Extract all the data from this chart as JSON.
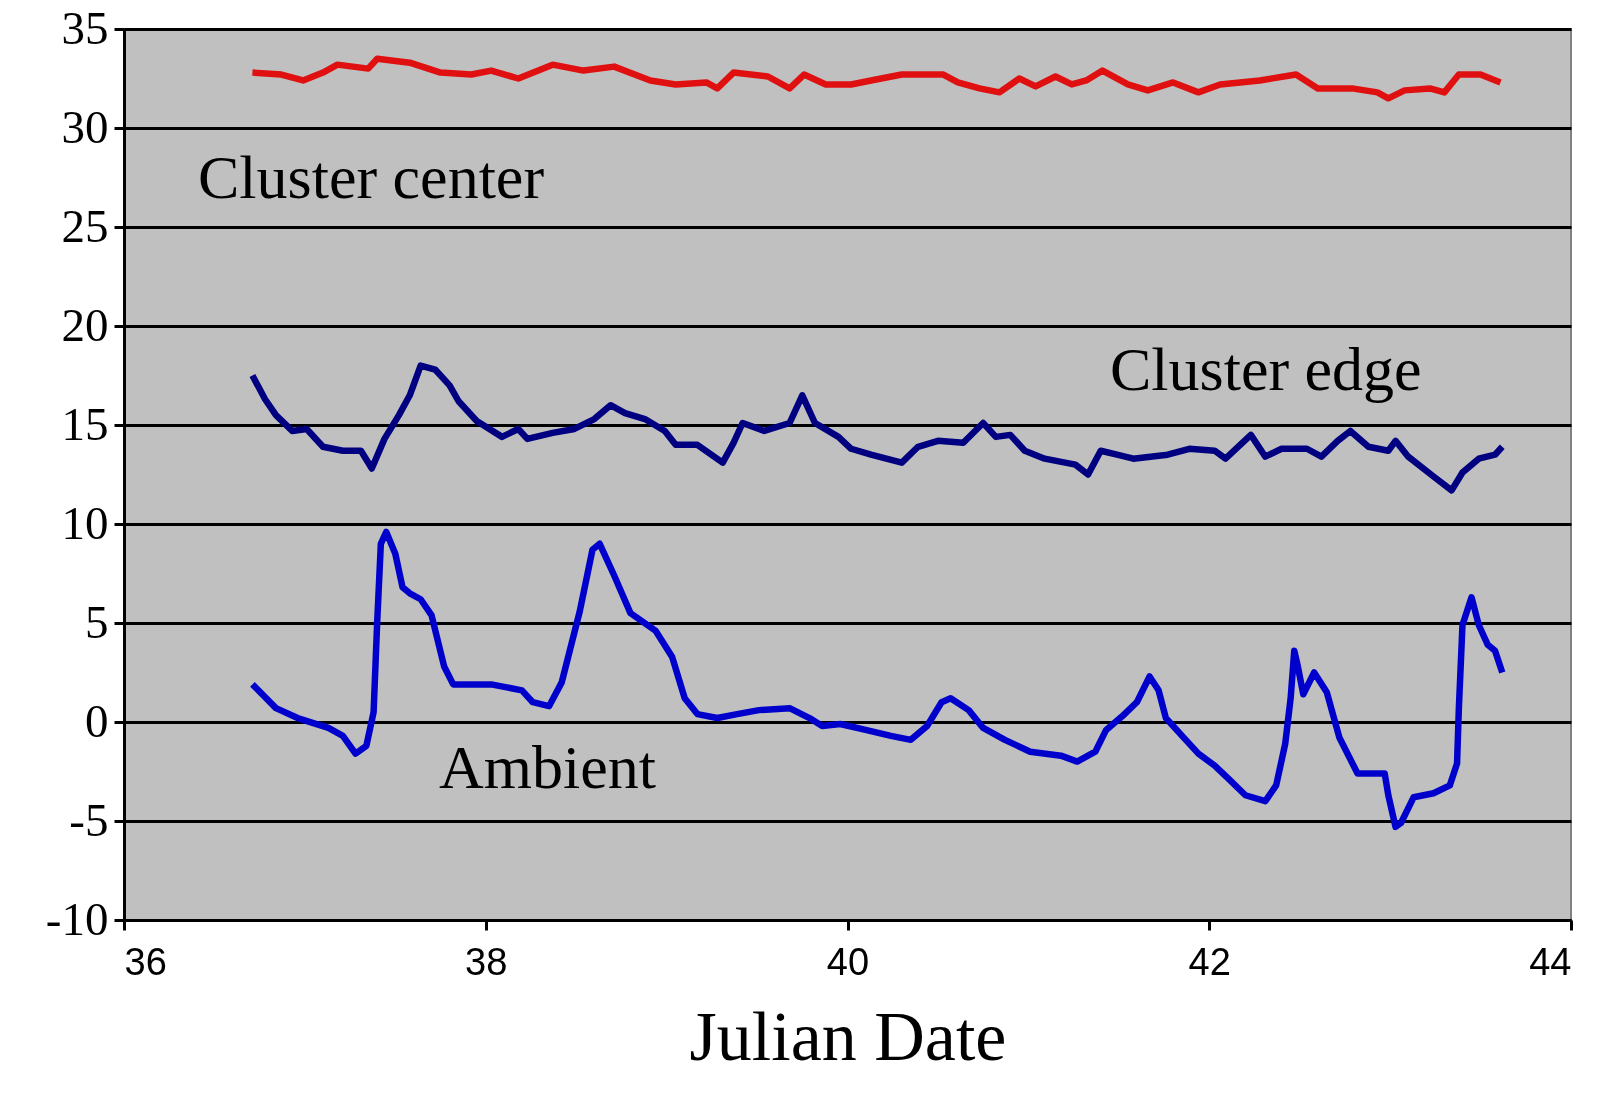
{
  "chart_data": {
    "type": "line",
    "xlabel": "Julian Date",
    "xlim": [
      36,
      44
    ],
    "xticks": [
      36,
      38,
      40,
      42,
      44
    ],
    "ylim": [
      -10,
      35
    ],
    "yticks": [
      -10,
      -5,
      0,
      5,
      10,
      15,
      20,
      25,
      30,
      35
    ],
    "grid": "y",
    "marker": "none",
    "line_style": "solid",
    "legend": false,
    "series": [
      {
        "color": "#e01010",
        "x": [
          36.71,
          36.87,
          36.99,
          37.1,
          37.18,
          37.35,
          37.4,
          37.58,
          37.75,
          37.92,
          38.03,
          38.18,
          38.37,
          38.54,
          38.71,
          38.91,
          39.05,
          39.22,
          39.28,
          39.37,
          39.56,
          39.68,
          39.76,
          39.88,
          40.02,
          40.13,
          40.3,
          40.53,
          40.61,
          40.73,
          40.84,
          40.95,
          41.04,
          41.15,
          41.24,
          41.32,
          41.41,
          41.55,
          41.66,
          41.8,
          41.94,
          42.06,
          42.28,
          42.48,
          42.6,
          42.79,
          42.93,
          42.99,
          43.08,
          43.22,
          43.3,
          43.38,
          43.5,
          43.61
        ],
        "values": [
          32.8,
          32.7,
          32.4,
          32.8,
          33.2,
          33.0,
          33.5,
          33.3,
          32.8,
          32.7,
          32.9,
          32.5,
          33.2,
          32.9,
          33.1,
          32.4,
          32.2,
          32.3,
          32.0,
          32.8,
          32.6,
          32.0,
          32.7,
          32.2,
          32.2,
          32.4,
          32.7,
          32.7,
          32.3,
          32.0,
          31.8,
          32.5,
          32.1,
          32.6,
          32.2,
          32.4,
          32.9,
          32.2,
          31.9,
          32.3,
          31.8,
          32.2,
          32.4,
          32.7,
          32.0,
          32.0,
          31.8,
          31.5,
          31.9,
          32.0,
          31.8,
          32.7,
          32.7,
          32.3
        ]
      },
      {
        "color": "#000080",
        "x": [
          36.71,
          36.78,
          36.84,
          36.93,
          37.01,
          37.1,
          37.21,
          37.31,
          37.37,
          37.44,
          37.52,
          37.58,
          37.64,
          37.72,
          37.8,
          37.85,
          37.95,
          38.09,
          38.18,
          38.23,
          38.37,
          38.49,
          38.6,
          38.69,
          38.77,
          38.88,
          38.99,
          39.05,
          39.17,
          39.31,
          39.37,
          39.42,
          39.54,
          39.68,
          39.75,
          39.82,
          39.95,
          40.02,
          40.13,
          40.3,
          40.39,
          40.5,
          40.64,
          40.75,
          40.82,
          40.9,
          40.98,
          41.09,
          41.26,
          41.33,
          41.4,
          41.49,
          41.58,
          41.77,
          41.89,
          42.03,
          42.09,
          42.23,
          42.31,
          42.4,
          42.54,
          42.62,
          42.71,
          42.78,
          42.88,
          42.99,
          43.03,
          43.1,
          43.24,
          43.34,
          43.4,
          43.49,
          43.58,
          43.62
        ],
        "values": [
          17.5,
          16.3,
          15.5,
          14.7,
          14.8,
          13.9,
          13.7,
          13.7,
          12.8,
          14.3,
          15.5,
          16.5,
          18.0,
          17.8,
          17.0,
          16.2,
          15.2,
          14.4,
          14.8,
          14.3,
          14.6,
          14.8,
          15.3,
          16.0,
          15.6,
          15.3,
          14.7,
          14.0,
          14.0,
          13.1,
          14.1,
          15.1,
          14.7,
          15.1,
          16.5,
          15.1,
          14.4,
          13.8,
          13.5,
          13.1,
          13.9,
          14.2,
          14.1,
          15.1,
          14.4,
          14.5,
          13.7,
          13.3,
          13.0,
          12.5,
          13.7,
          13.5,
          13.3,
          13.5,
          13.8,
          13.7,
          13.3,
          14.5,
          13.4,
          13.8,
          13.8,
          13.4,
          14.2,
          14.7,
          13.9,
          13.7,
          14.2,
          13.4,
          12.4,
          11.7,
          12.6,
          13.3,
          13.5,
          13.9
        ]
      },
      {
        "color": "#0000cc",
        "x": [
          36.71,
          36.84,
          36.96,
          37.13,
          37.21,
          37.28,
          37.34,
          37.38,
          37.4,
          37.42,
          37.45,
          37.5,
          37.54,
          37.58,
          37.64,
          37.7,
          37.77,
          37.82,
          38.03,
          38.2,
          38.26,
          38.35,
          38.42,
          38.52,
          38.59,
          38.63,
          38.71,
          38.8,
          38.94,
          39.03,
          39.1,
          39.17,
          39.28,
          39.39,
          39.51,
          39.68,
          39.79,
          39.86,
          39.96,
          40.1,
          40.24,
          40.35,
          40.44,
          40.52,
          40.57,
          40.67,
          40.75,
          40.87,
          41.01,
          41.18,
          41.27,
          41.37,
          41.43,
          41.52,
          41.6,
          41.67,
          41.72,
          41.76,
          41.86,
          41.94,
          42.03,
          42.11,
          42.2,
          42.31,
          42.37,
          42.42,
          42.45,
          42.47,
          42.49,
          42.52,
          42.58,
          42.65,
          42.72,
          42.82,
          42.97,
          42.99,
          43.03,
          43.06,
          43.13,
          43.24,
          43.33,
          43.37,
          43.38,
          43.4,
          43.45,
          43.49,
          43.54,
          43.58,
          43.62
        ],
        "values": [
          1.9,
          0.7,
          0.2,
          -0.3,
          -0.7,
          -1.6,
          -1.2,
          0.5,
          5.1,
          9.0,
          9.6,
          8.5,
          6.8,
          6.5,
          6.2,
          5.4,
          2.8,
          1.9,
          1.9,
          1.6,
          1.0,
          0.8,
          2.0,
          5.6,
          8.7,
          9.0,
          7.4,
          5.5,
          4.6,
          3.3,
          1.2,
          0.4,
          0.2,
          0.4,
          0.6,
          0.7,
          0.2,
          -0.2,
          -0.1,
          -0.4,
          -0.7,
          -0.9,
          -0.2,
          1.0,
          1.2,
          0.6,
          -0.3,
          -0.9,
          -1.5,
          -1.7,
          -2.0,
          -1.5,
          -0.4,
          0.3,
          1.0,
          2.3,
          1.6,
          0.2,
          -0.8,
          -1.6,
          -2.2,
          -2.9,
          -3.7,
          -4.0,
          -3.2,
          -1.1,
          1.2,
          3.6,
          2.8,
          1.4,
          2.5,
          1.5,
          -0.8,
          -2.6,
          -2.6,
          -3.7,
          -5.3,
          -5.1,
          -3.8,
          -3.6,
          -3.2,
          -2.1,
          0.7,
          4.9,
          6.3,
          4.9,
          3.9,
          3.6,
          2.5
        ]
      }
    ],
    "annotations": [
      "Cluster center",
      "Cluster edge",
      "Ambient"
    ]
  }
}
